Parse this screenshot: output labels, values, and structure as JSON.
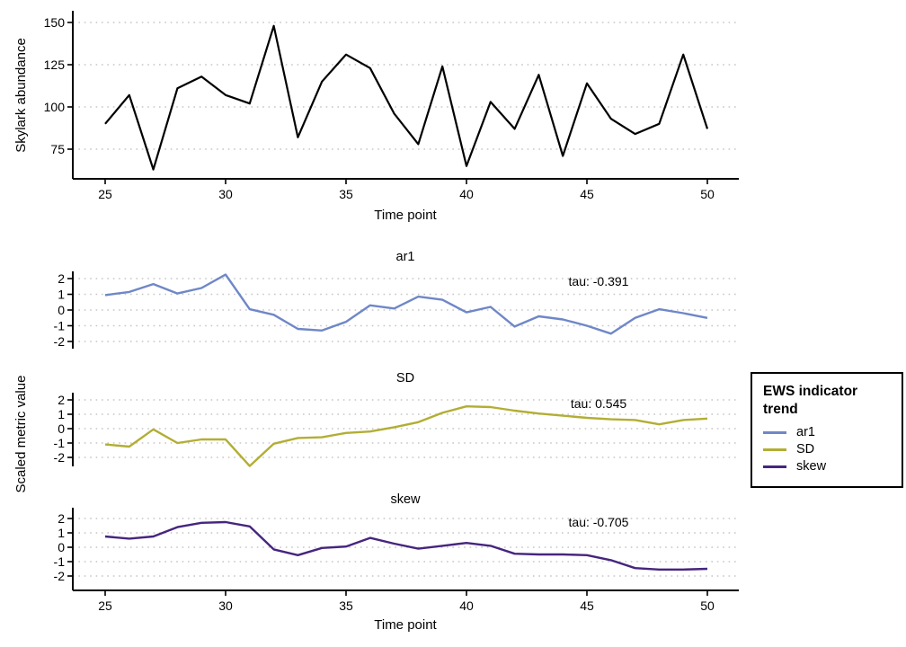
{
  "figure": {
    "background": "#ffffff",
    "text_color": "#000000",
    "grid_color": "#c6c6c6",
    "grid_style": "dotted horizontal lines only"
  },
  "chart_data": [
    {
      "id": "abundance-timeseries",
      "type": "line",
      "title": "",
      "xlabel": "Time point",
      "ylabel": "Skylark abundance",
      "x": [
        25,
        26,
        27,
        28,
        29,
        30,
        31,
        32,
        33,
        34,
        35,
        36,
        37,
        38,
        39,
        40,
        41,
        42,
        43,
        44,
        45,
        46,
        47,
        48,
        49,
        50
      ],
      "values": [
        90,
        107,
        63,
        111,
        118,
        107,
        102,
        148,
        82,
        115,
        131,
        123,
        96,
        78,
        124,
        65,
        103,
        87,
        119,
        71,
        114,
        93,
        84,
        90,
        131,
        87
      ],
      "xticks": [
        25,
        30,
        35,
        40,
        45,
        50
      ],
      "yticks": [
        75,
        100,
        125,
        150
      ],
      "xlim": [
        23.7,
        51.3
      ],
      "ylim": [
        57,
        152
      ],
      "line_color": "#000000",
      "legend": "none"
    },
    {
      "id": "ews-indicator-trends",
      "type": "line",
      "title": "",
      "xlabel": "Time point",
      "ylabel": "Scaled metric value",
      "x": [
        25,
        26,
        27,
        28,
        29,
        30,
        31,
        32,
        33,
        34,
        35,
        36,
        37,
        38,
        39,
        40,
        41,
        42,
        43,
        44,
        45,
        46,
        47,
        48,
        49,
        50
      ],
      "xticks": [
        25,
        30,
        35,
        40,
        45,
        50
      ],
      "yticks": [
        2,
        1,
        0,
        -1,
        -2
      ],
      "ylim": [
        -2.75,
        2.55
      ],
      "facets": [
        {
          "label": "ar1",
          "tau": "tau: -0.391",
          "color": "#6f87c7",
          "values": [
            0.95,
            1.15,
            1.65,
            1.05,
            1.4,
            2.25,
            0.05,
            -0.3,
            -1.2,
            -1.3,
            -0.75,
            0.3,
            0.1,
            0.85,
            0.65,
            -0.15,
            0.2,
            -1.05,
            -0.4,
            -0.6,
            -1.0,
            -1.5,
            -0.5,
            0.05,
            -0.2,
            -0.5
          ]
        },
        {
          "label": "SD",
          "tau": "tau: 0.545",
          "color": "#b2ae34",
          "values": [
            -1.1,
            -1.25,
            -0.05,
            -1.0,
            -0.75,
            -0.75,
            -2.6,
            -1.05,
            -0.65,
            -0.6,
            -0.3,
            -0.2,
            0.1,
            0.45,
            1.1,
            1.55,
            1.5,
            1.25,
            1.05,
            0.9,
            0.75,
            0.65,
            0.6,
            0.3,
            0.6,
            0.7
          ]
        },
        {
          "label": "skew",
          "tau": "tau: -0.705",
          "color": "#46257e",
          "values": [
            0.75,
            0.6,
            0.75,
            1.4,
            1.7,
            1.75,
            1.45,
            -0.15,
            -0.55,
            -0.05,
            0.05,
            0.65,
            0.25,
            -0.1,
            0.1,
            0.3,
            0.1,
            -0.45,
            -0.5,
            -0.5,
            -0.55,
            -0.9,
            -1.45,
            -1.55,
            -1.55,
            -1.5
          ]
        }
      ]
    }
  ],
  "legend": {
    "title": "EWS indicator trend",
    "items": [
      {
        "label": "ar1",
        "color": "#6f87c7"
      },
      {
        "label": "SD",
        "color": "#b2ae34"
      },
      {
        "label": "skew",
        "color": "#46257e"
      }
    ]
  }
}
